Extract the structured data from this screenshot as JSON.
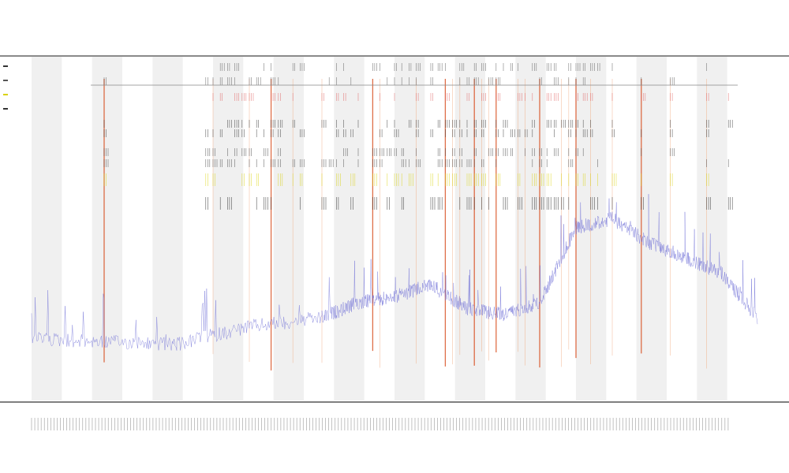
{
  "chart_data": {
    "type": "line",
    "title": "",
    "subtitle_1": "",
    "subtitle_2": "",
    "xlabel": "",
    "ylabel": "",
    "grid": false,
    "legend_placement": "top-left",
    "bands": 12,
    "legend": [
      {
        "name": "",
        "color": "#333333"
      },
      {
        "name": "",
        "color": "#555555"
      },
      {
        "name": "",
        "color": "#d9d200"
      },
      {
        "name": "",
        "color": "#333333"
      }
    ],
    "series": [
      {
        "name": "",
        "kind": "baseline",
        "color": "#6b6bd6",
        "segments": [
          {
            "x0": 0,
            "x1": 10,
            "y0": 8,
            "y1": 7
          },
          {
            "x0": 10,
            "x1": 20,
            "y0": 7,
            "y1": 6
          },
          {
            "x0": 20,
            "x1": 30,
            "y0": 6,
            "y1": 12
          },
          {
            "x0": 30,
            "x1": 40,
            "y0": 12,
            "y1": 15
          },
          {
            "x0": 40,
            "x1": 45,
            "y0": 15,
            "y1": 20
          },
          {
            "x0": 45,
            "x1": 50,
            "y0": 20,
            "y1": 22
          },
          {
            "x0": 50,
            "x1": 55,
            "y0": 22,
            "y1": 26
          },
          {
            "x0": 55,
            "x1": 60,
            "y0": 26,
            "y1": 18
          },
          {
            "x0": 60,
            "x1": 65,
            "y0": 18,
            "y1": 16
          },
          {
            "x0": 65,
            "x1": 70,
            "y0": 16,
            "y1": 20
          },
          {
            "x0": 70,
            "x1": 75,
            "y0": 20,
            "y1": 45
          },
          {
            "x0": 75,
            "x1": 80,
            "y0": 45,
            "y1": 48
          },
          {
            "x0": 80,
            "x1": 85,
            "y0": 48,
            "y1": 40
          },
          {
            "x0": 85,
            "x1": 90,
            "y0": 40,
            "y1": 35
          },
          {
            "x0": 90,
            "x1": 95,
            "y0": 35,
            "y1": 30
          },
          {
            "x0": 95,
            "x1": 100,
            "y0": 30,
            "y1": 15
          }
        ]
      }
    ],
    "spikes": {
      "color_strong": "#d84a1b",
      "color_light": "#f0a070",
      "positions": [
        10,
        25,
        30,
        33,
        36,
        40,
        47,
        48,
        53,
        57,
        58,
        59,
        61,
        62,
        63,
        64,
        67,
        68,
        70,
        73,
        74,
        75,
        77,
        80,
        84,
        88,
        93
      ]
    },
    "events": {
      "row_colors": [
        "#555555",
        "#555555",
        "#e06060",
        "#333333",
        "#333333",
        "#444444",
        "#444444",
        "#d9d200",
        "#222222"
      ],
      "positions": [
        10,
        24,
        25,
        26,
        27,
        28,
        29,
        30,
        31,
        32,
        33,
        34,
        36,
        37,
        40,
        41,
        42,
        43,
        44,
        45,
        47,
        48,
        49,
        50,
        51,
        52,
        53,
        55,
        56,
        57,
        58,
        59,
        60,
        61,
        62,
        63,
        64,
        65,
        66,
        67,
        68,
        69,
        70,
        71,
        72,
        73,
        74,
        75,
        76,
        77,
        78,
        80,
        84,
        88,
        93,
        96
      ]
    },
    "xlim": [
      0,
      100
    ],
    "ylim": [
      0,
      100
    ]
  }
}
